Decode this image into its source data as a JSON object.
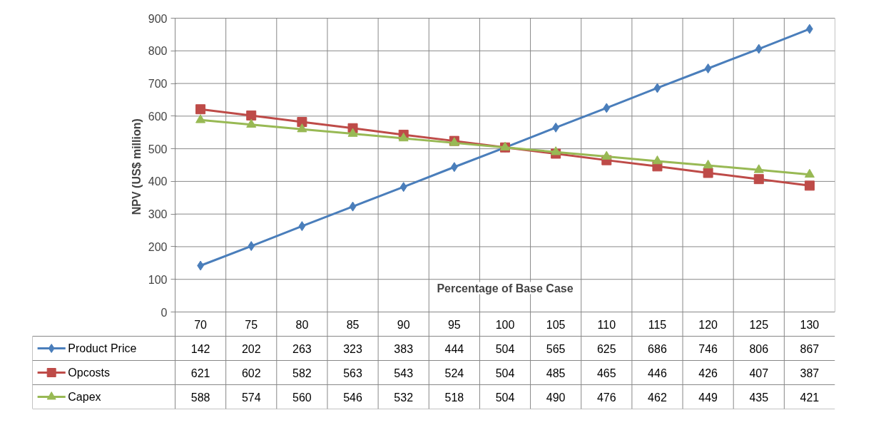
{
  "chart_data": {
    "type": "line",
    "xlabel": "Percentage of Base Case",
    "ylabel": "NPV  (US$ million)",
    "categories": [
      "70",
      "75",
      "80",
      "85",
      "90",
      "95",
      "100",
      "105",
      "110",
      "115",
      "120",
      "125",
      "130"
    ],
    "series": [
      {
        "name": "Product Price",
        "color": "#4a7ebb",
        "marker": "diamond",
        "values": [
          142,
          202,
          263,
          323,
          383,
          444,
          504,
          565,
          625,
          686,
          746,
          806,
          867
        ]
      },
      {
        "name": "Opcosts",
        "color": "#be4b48",
        "marker": "square",
        "values": [
          621,
          602,
          582,
          563,
          543,
          524,
          504,
          485,
          465,
          446,
          426,
          407,
          387
        ]
      },
      {
        "name": "Capex",
        "color": "#98b954",
        "marker": "triangle",
        "values": [
          588,
          574,
          560,
          546,
          532,
          518,
          504,
          490,
          476,
          462,
          449,
          435,
          421
        ]
      }
    ],
    "ylim": [
      0,
      900
    ],
    "yticks": [
      0,
      100,
      200,
      300,
      400,
      500,
      600,
      700,
      800,
      900
    ],
    "grid": true,
    "legend": "bottom",
    "data_labels": true
  }
}
